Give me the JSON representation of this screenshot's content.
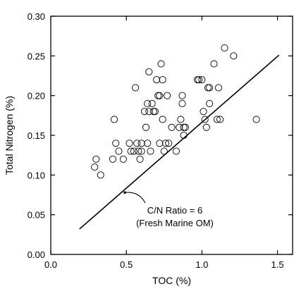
{
  "chart_data": {
    "type": "scatter",
    "title": "",
    "xlabel": "TOC (%)",
    "ylabel": "Total Nitrogen (%)",
    "xlim": [
      0.0,
      1.6
    ],
    "ylim": [
      0.0,
      0.3
    ],
    "grid": false,
    "x_ticks": [
      0.0,
      0.5,
      1.0,
      1.5
    ],
    "x_tick_labels": [
      "0.0",
      "0.5",
      "1.0",
      "1.5"
    ],
    "y_ticks": [
      0.0,
      0.05,
      0.1,
      0.15,
      0.2,
      0.25,
      0.3
    ],
    "y_tick_labels": [
      "0.00",
      "0.05",
      "0.10",
      "0.15",
      "0.20",
      "0.25",
      "0.30"
    ],
    "points": [
      {
        "x": 0.29,
        "y": 0.11
      },
      {
        "x": 0.3,
        "y": 0.12
      },
      {
        "x": 0.33,
        "y": 0.1
      },
      {
        "x": 0.41,
        "y": 0.12
      },
      {
        "x": 0.42,
        "y": 0.17
      },
      {
        "x": 0.43,
        "y": 0.14
      },
      {
        "x": 0.45,
        "y": 0.13
      },
      {
        "x": 0.48,
        "y": 0.12
      },
      {
        "x": 0.52,
        "y": 0.14
      },
      {
        "x": 0.53,
        "y": 0.13
      },
      {
        "x": 0.55,
        "y": 0.13
      },
      {
        "x": 0.56,
        "y": 0.21
      },
      {
        "x": 0.57,
        "y": 0.14
      },
      {
        "x": 0.58,
        "y": 0.13
      },
      {
        "x": 0.59,
        "y": 0.12
      },
      {
        "x": 0.6,
        "y": 0.13
      },
      {
        "x": 0.6,
        "y": 0.14
      },
      {
        "x": 0.62,
        "y": 0.18
      },
      {
        "x": 0.63,
        "y": 0.16
      },
      {
        "x": 0.64,
        "y": 0.14
      },
      {
        "x": 0.64,
        "y": 0.19
      },
      {
        "x": 0.65,
        "y": 0.23
      },
      {
        "x": 0.65,
        "y": 0.18
      },
      {
        "x": 0.66,
        "y": 0.13
      },
      {
        "x": 0.67,
        "y": 0.19
      },
      {
        "x": 0.68,
        "y": 0.18
      },
      {
        "x": 0.69,
        "y": 0.18
      },
      {
        "x": 0.7,
        "y": 0.22
      },
      {
        "x": 0.71,
        "y": 0.2
      },
      {
        "x": 0.72,
        "y": 0.2
      },
      {
        "x": 0.72,
        "y": 0.14
      },
      {
        "x": 0.73,
        "y": 0.24
      },
      {
        "x": 0.74,
        "y": 0.22
      },
      {
        "x": 0.74,
        "y": 0.17
      },
      {
        "x": 0.75,
        "y": 0.13
      },
      {
        "x": 0.76,
        "y": 0.14
      },
      {
        "x": 0.77,
        "y": 0.2
      },
      {
        "x": 0.78,
        "y": 0.14
      },
      {
        "x": 0.8,
        "y": 0.16
      },
      {
        "x": 0.83,
        "y": 0.13
      },
      {
        "x": 0.85,
        "y": 0.16
      },
      {
        "x": 0.86,
        "y": 0.17
      },
      {
        "x": 0.87,
        "y": 0.2
      },
      {
        "x": 0.87,
        "y": 0.19
      },
      {
        "x": 0.88,
        "y": 0.16
      },
      {
        "x": 0.88,
        "y": 0.15
      },
      {
        "x": 0.89,
        "y": 0.16
      },
      {
        "x": 0.97,
        "y": 0.22
      },
      {
        "x": 0.98,
        "y": 0.22
      },
      {
        "x": 1.0,
        "y": 0.22
      },
      {
        "x": 1.01,
        "y": 0.18
      },
      {
        "x": 1.02,
        "y": 0.17
      },
      {
        "x": 1.03,
        "y": 0.16
      },
      {
        "x": 1.04,
        "y": 0.21
      },
      {
        "x": 1.05,
        "y": 0.21
      },
      {
        "x": 1.05,
        "y": 0.19
      },
      {
        "x": 1.08,
        "y": 0.24
      },
      {
        "x": 1.1,
        "y": 0.17
      },
      {
        "x": 1.11,
        "y": 0.21
      },
      {
        "x": 1.12,
        "y": 0.17
      },
      {
        "x": 1.15,
        "y": 0.26
      },
      {
        "x": 1.21,
        "y": 0.25
      },
      {
        "x": 1.36,
        "y": 0.17
      }
    ],
    "reference_line": {
      "label_lines": [
        "C/N Ratio = 6",
        "(Fresh Marine OM)"
      ],
      "x": [
        0.19,
        1.51
      ],
      "y": [
        0.032,
        0.251
      ],
      "annotation_point": {
        "x": 0.49,
        "y": 0.078
      }
    }
  }
}
